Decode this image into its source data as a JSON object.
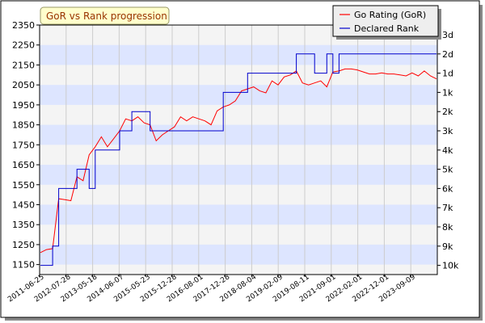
{
  "chart_data": {
    "type": "line",
    "title": "GoR vs Rank progression",
    "x_tick_labels": [
      "2011-06-25",
      "2012-07-28",
      "2013-05-18",
      "2014-06-07",
      "2015-05-23",
      "2015-12-28",
      "2016-08-01",
      "2017-12-28",
      "2018-08-04",
      "2019-02-09",
      "2019-08-11",
      "2021-09-01",
      "2022-02-01",
      "2022-12-01",
      "2023-09-09"
    ],
    "left_axis": {
      "ylim": [
        1100,
        2350
      ],
      "ticks": [
        1150,
        1250,
        1350,
        1450,
        1550,
        1650,
        1750,
        1850,
        1950,
        2050,
        2150,
        2250,
        2350
      ]
    },
    "right_axis": {
      "labels": [
        "3d",
        "2d",
        "1d",
        "1k",
        "2k",
        "3k",
        "4k",
        "5k",
        "6k",
        "7k",
        "8k",
        "9k",
        "10k"
      ]
    },
    "legend": {
      "placement": "top-right"
    },
    "colors": {
      "gor": "#ff0000",
      "rank": "#0000cc",
      "band": "#dde5ff",
      "bg": "#f4f4f4",
      "title_bg": "#ffffcc"
    },
    "series": [
      {
        "name": "Go Rating (GoR)",
        "y": [
          1210,
          1225,
          1230,
          1480,
          1475,
          1470,
          1590,
          1570,
          1700,
          1740,
          1790,
          1740,
          1780,
          1820,
          1880,
          1870,
          1890,
          1860,
          1850,
          1770,
          1800,
          1820,
          1840,
          1890,
          1870,
          1890,
          1880,
          1870,
          1850,
          1920,
          1940,
          1950,
          1970,
          2020,
          2030,
          2040,
          2020,
          2010,
          2070,
          2050,
          2090,
          2100,
          2120,
          2060,
          2050,
          2060,
          2070,
          2040,
          2115,
          2120,
          2130,
          2130,
          2125,
          2115,
          2105,
          2105,
          2110,
          2105,
          2105,
          2100,
          2095,
          2110,
          2095,
          2120,
          2095,
          2080
        ]
      },
      {
        "name": "Declared Rank",
        "rank_step": [
          10,
          10,
          9,
          6,
          6,
          6,
          5,
          5,
          6,
          4,
          4,
          4,
          4,
          3,
          3,
          2,
          2,
          2,
          3,
          3,
          3,
          3,
          3,
          3,
          3,
          3,
          3,
          3,
          3,
          3,
          1,
          1,
          1,
          1,
          0,
          0,
          0,
          0,
          0,
          0,
          0,
          0,
          -1,
          -1,
          -1,
          0,
          0,
          -1,
          0,
          -1,
          -1,
          -1,
          -1,
          -1,
          -1,
          -1,
          -1,
          -1,
          -1,
          -1,
          -1,
          -1,
          -1,
          -1,
          -1,
          -1
        ]
      }
    ]
  }
}
